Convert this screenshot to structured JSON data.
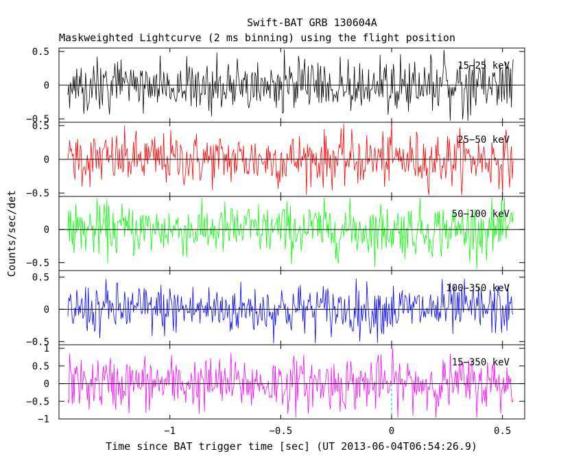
{
  "title": "Swift-BAT GRB 130604A",
  "subtitle": "Maskweighted Lightcurve (2 ms binning) using the flight position",
  "xlabel": "Time since BAT trigger time [sec] (UT 2013-06-04T06:54:26.9)",
  "ylabel": "Counts/sec/det",
  "chart_data": {
    "type": "line",
    "x_range": [
      -1.5,
      0.6
    ],
    "x_data_range": [
      -1.46,
      0.55
    ],
    "bin_width": 0.002,
    "x_ticks": [
      -1,
      -0.5,
      0,
      0.5
    ],
    "x_tick_labels": [
      "−1",
      "−0.5",
      "0",
      "0.5"
    ],
    "trigger_marker_x": 0,
    "trigger_marker_color": "#00aaff",
    "grid": false,
    "panels": [
      {
        "band": "15−25 keV",
        "color": "#000000",
        "ylim": [
          -0.55,
          0.55
        ],
        "y_ticks": [
          -0.5,
          0,
          0.5
        ],
        "y_tick_labels": [
          "−0.5",
          "0",
          "0.5"
        ],
        "amplitude": 0.2
      },
      {
        "band": "25−50 keV",
        "color": "#ff0000",
        "ylim": [
          -0.55,
          0.55
        ],
        "y_ticks": [
          -0.5,
          0,
          0.5
        ],
        "y_tick_labels": [
          "−0.5",
          "0",
          "0.5"
        ],
        "amplitude": 0.2
      },
      {
        "band": "50−100 keV",
        "color": "#00ff00",
        "ylim": [
          -0.62,
          0.5
        ],
        "y_ticks": [
          -0.5,
          0
        ],
        "y_tick_labels": [
          "−0.5",
          "0"
        ],
        "amplitude": 0.2
      },
      {
        "band": "100−350 keV",
        "color": "#0000ff",
        "ylim": [
          -0.55,
          0.6
        ],
        "y_ticks": [
          -0.5,
          0,
          0.5
        ],
        "y_tick_labels": [
          "−0.5",
          "0",
          "0.5"
        ],
        "amplitude": 0.2
      },
      {
        "band": "15−350 keV",
        "color": "#ff00ff",
        "ylim": [
          -1,
          1.1
        ],
        "y_ticks": [
          -1,
          -0.5,
          0,
          0.5,
          1
        ],
        "y_tick_labels": [
          "−1",
          "−0.5",
          "0",
          "0.5",
          "1"
        ],
        "amplitude": 0.38
      }
    ]
  }
}
